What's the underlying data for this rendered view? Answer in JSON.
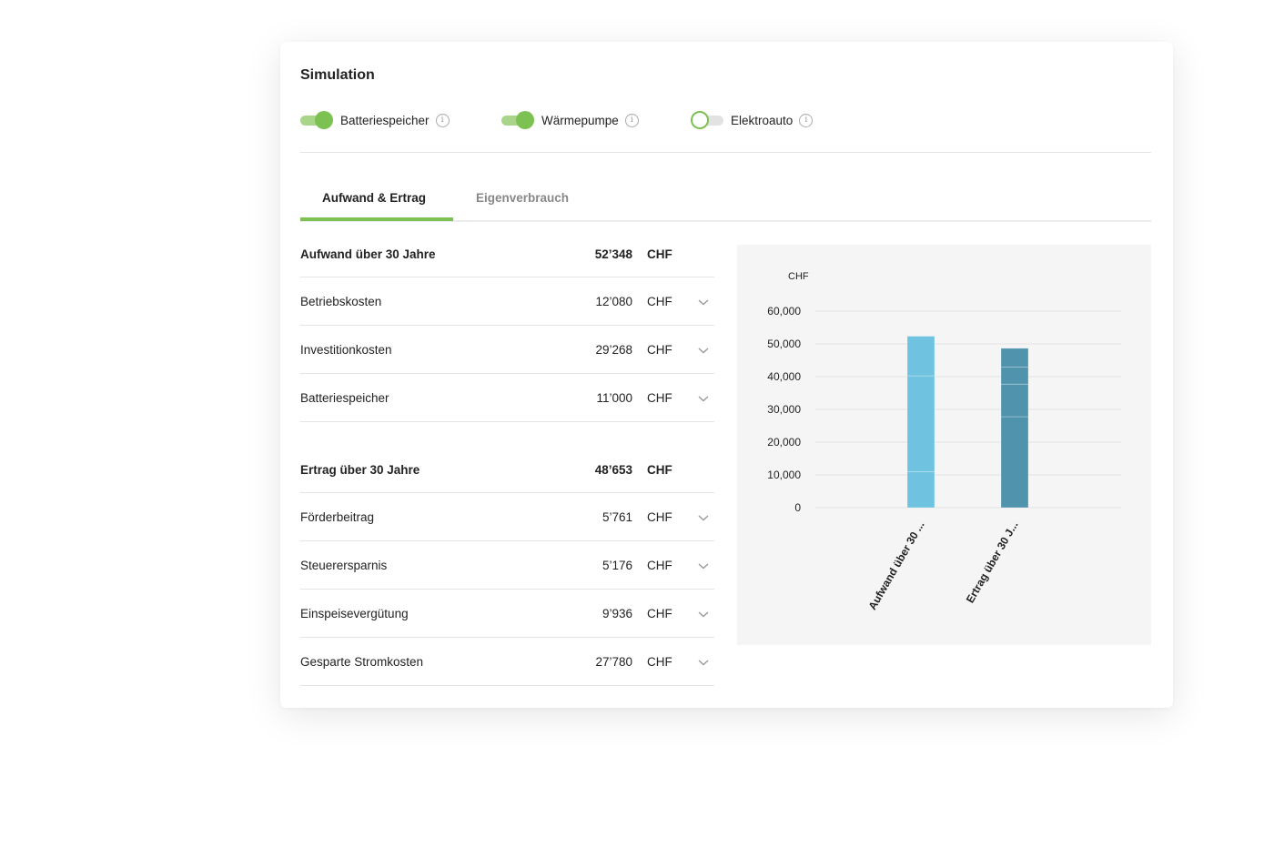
{
  "simulation": {
    "title": "Simulation",
    "toggles": [
      {
        "label": "Batteriespeicher",
        "on": true
      },
      {
        "label": "Wärmepumpe",
        "on": true
      },
      {
        "label": "Elektroauto",
        "on": false
      }
    ],
    "info_icon": "info-icon"
  },
  "tabs": [
    {
      "label": "Aufwand & Ertrag",
      "active": true
    },
    {
      "label": "Eigenverbrauch",
      "active": false
    }
  ],
  "table": {
    "aufwand": {
      "title": "Aufwand über 30 Jahre",
      "amount": "52’348",
      "currency": "CHF",
      "items": [
        {
          "name": "Betriebskosten",
          "amount": "12’080",
          "currency": "CHF"
        },
        {
          "name": "Investitionkosten",
          "amount": "29’268",
          "currency": "CHF"
        },
        {
          "name": "Batteriespeicher",
          "amount": "11’000",
          "currency": "CHF"
        }
      ]
    },
    "ertrag": {
      "title": "Ertrag über 30 Jahre",
      "amount": "48’653",
      "currency": "CHF",
      "items": [
        {
          "name": "Förderbeitrag",
          "amount": "5’761",
          "currency": "CHF"
        },
        {
          "name": "Steuerersparnis",
          "amount": "5’176",
          "currency": "CHF"
        },
        {
          "name": "Einspeisevergütung",
          "amount": "9’936",
          "currency": "CHF"
        },
        {
          "name": "Gesparte Stromkosten",
          "amount": "27’780",
          "currency": "CHF"
        }
      ]
    }
  },
  "chart_data": {
    "type": "bar",
    "ylabel": "CHF",
    "ylim": [
      0,
      60000
    ],
    "yticks": [
      0,
      10000,
      20000,
      30000,
      40000,
      50000,
      60000
    ],
    "ytick_labels": [
      "0",
      "10,000",
      "20,000",
      "30,000",
      "40,000",
      "50,000",
      "60,000"
    ],
    "categories": [
      "Aufwand über 30 ...",
      "Ertrag über 30 J..."
    ],
    "stacks": [
      [
        11000,
        29268,
        12080
      ],
      [
        27780,
        9936,
        5176,
        5761
      ]
    ],
    "colors": [
      "#6fc3e0",
      "#4f93ad"
    ],
    "grid": true
  }
}
